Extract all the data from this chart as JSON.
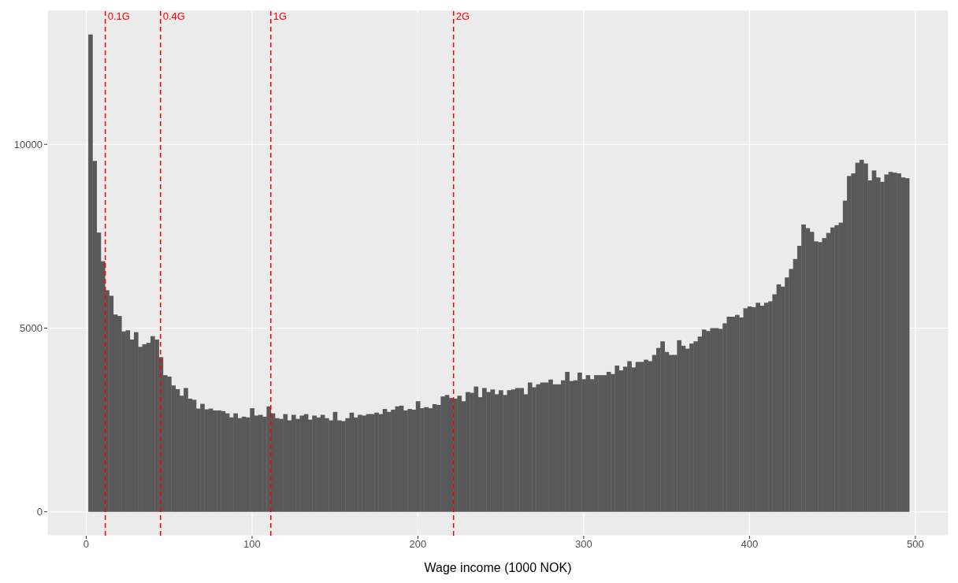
{
  "chart_data": {
    "type": "histogram",
    "xlabel": "Wage income (1000 NOK)",
    "color": "#595959",
    "bins": [
      1.25,
      3.75,
      6.25,
      8.75,
      11.25,
      13.75,
      16.25,
      18.75,
      21.25,
      23.75,
      26.25,
      28.75,
      31.25,
      33.75,
      36.25,
      38.75,
      41.25,
      43.75,
      46.25,
      48.75,
      51.25,
      53.75,
      56.25,
      58.75,
      61.25,
      63.75,
      66.25,
      68.75,
      71.25,
      73.75,
      76.25,
      78.75,
      81.25,
      83.75,
      86.25,
      88.75,
      91.25,
      93.75,
      96.25,
      98.75,
      101.25,
      103.75,
      106.25,
      108.75,
      111.25,
      113.75,
      116.25,
      118.75,
      121.25,
      123.75,
      126.25,
      128.75,
      131.25,
      133.75,
      136.25,
      138.75,
      141.25,
      143.75,
      146.25,
      148.75,
      151.25,
      153.75,
      156.25,
      158.75,
      161.25,
      163.75,
      166.25,
      168.75,
      171.25,
      173.75,
      176.25,
      178.75,
      181.25,
      183.75,
      186.25,
      188.75,
      191.25,
      193.75,
      196.25,
      198.75,
      201.25,
      203.75,
      206.25,
      208.75,
      211.25,
      213.75,
      216.25,
      218.75,
      221.25,
      223.75,
      226.25,
      228.75,
      231.25,
      233.75,
      236.25,
      238.75,
      241.25,
      243.75,
      246.25,
      248.75,
      251.25,
      253.75,
      256.25,
      258.75,
      261.25,
      263.75,
      266.25,
      268.75,
      271.25,
      273.75,
      276.25,
      278.75,
      281.25,
      283.75,
      286.25,
      288.75,
      291.25,
      293.75,
      296.25,
      298.75,
      301.25,
      303.75,
      306.25,
      308.75,
      311.25,
      313.75,
      316.25,
      318.75,
      321.25,
      323.75,
      326.25,
      328.75,
      331.25,
      333.75,
      336.25,
      338.75,
      341.25,
      343.75,
      346.25,
      348.75,
      351.25,
      353.75,
      356.25,
      358.75,
      361.25,
      363.75,
      366.25,
      368.75,
      371.25,
      373.75,
      376.25,
      378.75,
      381.25,
      383.75,
      386.25,
      388.75,
      391.25,
      393.75,
      396.25,
      398.75,
      401.25,
      403.75,
      406.25,
      408.75,
      411.25,
      413.75,
      416.25,
      418.75,
      421.25,
      423.75,
      426.25,
      428.75,
      431.25,
      433.75,
      436.25,
      438.75,
      441.25,
      443.75,
      446.25,
      448.75,
      451.25,
      453.75,
      456.25,
      458.75,
      461.25,
      463.75,
      466.25,
      468.75,
      471.25,
      473.75,
      476.25,
      478.75,
      481.25,
      483.75,
      486.25,
      488.75,
      491.25,
      493.75,
      496.25
    ],
    "values": [
      12990,
      9550,
      7600,
      6820,
      6030,
      5880,
      5370,
      5330,
      4910,
      4940,
      4690,
      4890,
      4490,
      4560,
      4600,
      4780,
      4690,
      4210,
      3720,
      3680,
      3440,
      3340,
      3160,
      3370,
      3080,
      3050,
      2810,
      2940,
      2790,
      2810,
      2760,
      2760,
      2740,
      2680,
      2570,
      2680,
      2550,
      2590,
      2570,
      2820,
      2620,
      2640,
      2590,
      2870,
      2680,
      2550,
      2530,
      2660,
      2490,
      2640,
      2530,
      2620,
      2660,
      2510,
      2620,
      2570,
      2640,
      2550,
      2490,
      2720,
      2490,
      2470,
      2550,
      2700,
      2570,
      2640,
      2620,
      2660,
      2660,
      2700,
      2660,
      2800,
      2720,
      2780,
      2870,
      2890,
      2760,
      2800,
      2780,
      3010,
      2820,
      2850,
      2820,
      2930,
      2910,
      3140,
      3180,
      3100,
      3080,
      3160,
      3010,
      3260,
      3240,
      3410,
      3120,
      3370,
      3260,
      3330,
      3200,
      3310,
      3180,
      3310,
      3330,
      3370,
      3370,
      3200,
      3520,
      3390,
      3470,
      3520,
      3520,
      3600,
      3470,
      3470,
      3580,
      3810,
      3560,
      3580,
      3790,
      3610,
      3720,
      3610,
      3720,
      3720,
      3720,
      3810,
      3750,
      3980,
      3850,
      3950,
      4100,
      3930,
      4080,
      4080,
      4140,
      4100,
      4270,
      4460,
      4640,
      4350,
      4270,
      4270,
      4670,
      4520,
      4440,
      4580,
      4640,
      4770,
      4960,
      4920,
      5000,
      5000,
      4980,
      5130,
      5310,
      5310,
      5360,
      5290,
      5540,
      5590,
      5570,
      5690,
      5610,
      5690,
      5730,
      5920,
      6190,
      6130,
      6380,
      6610,
      6880,
      7240,
      7820,
      7720,
      7620,
      7360,
      7340,
      7450,
      7590,
      7740,
      7800,
      7870,
      8470,
      9140,
      9210,
      9500,
      9580,
      9480,
      9020,
      9290,
      9100,
      8980,
      9180,
      9250,
      9230,
      9210,
      9100,
      9080
    ],
    "xlim": [
      -23.5,
      520
    ],
    "xticks": [
      0,
      100,
      200,
      300,
      400,
      500
    ],
    "ylim": [
      -650,
      13650
    ],
    "yticks": [
      0,
      5000,
      10000
    ],
    "grid": true,
    "ref_lines": [
      {
        "axis": "x",
        "value": 11.5,
        "label": "0.1G",
        "color": "#ff0000",
        "line_style": "dashed"
      },
      {
        "axis": "x",
        "value": 44.8,
        "label": "0.4G",
        "color": "#ff0000",
        "line_style": "dashed"
      },
      {
        "axis": "x",
        "value": 111.3,
        "label": "1G",
        "color": "#ff0000",
        "line_style": "dashed"
      },
      {
        "axis": "x",
        "value": 221.5,
        "label": "2G",
        "color": "#ff0000",
        "line_style": "dashed"
      }
    ]
  }
}
